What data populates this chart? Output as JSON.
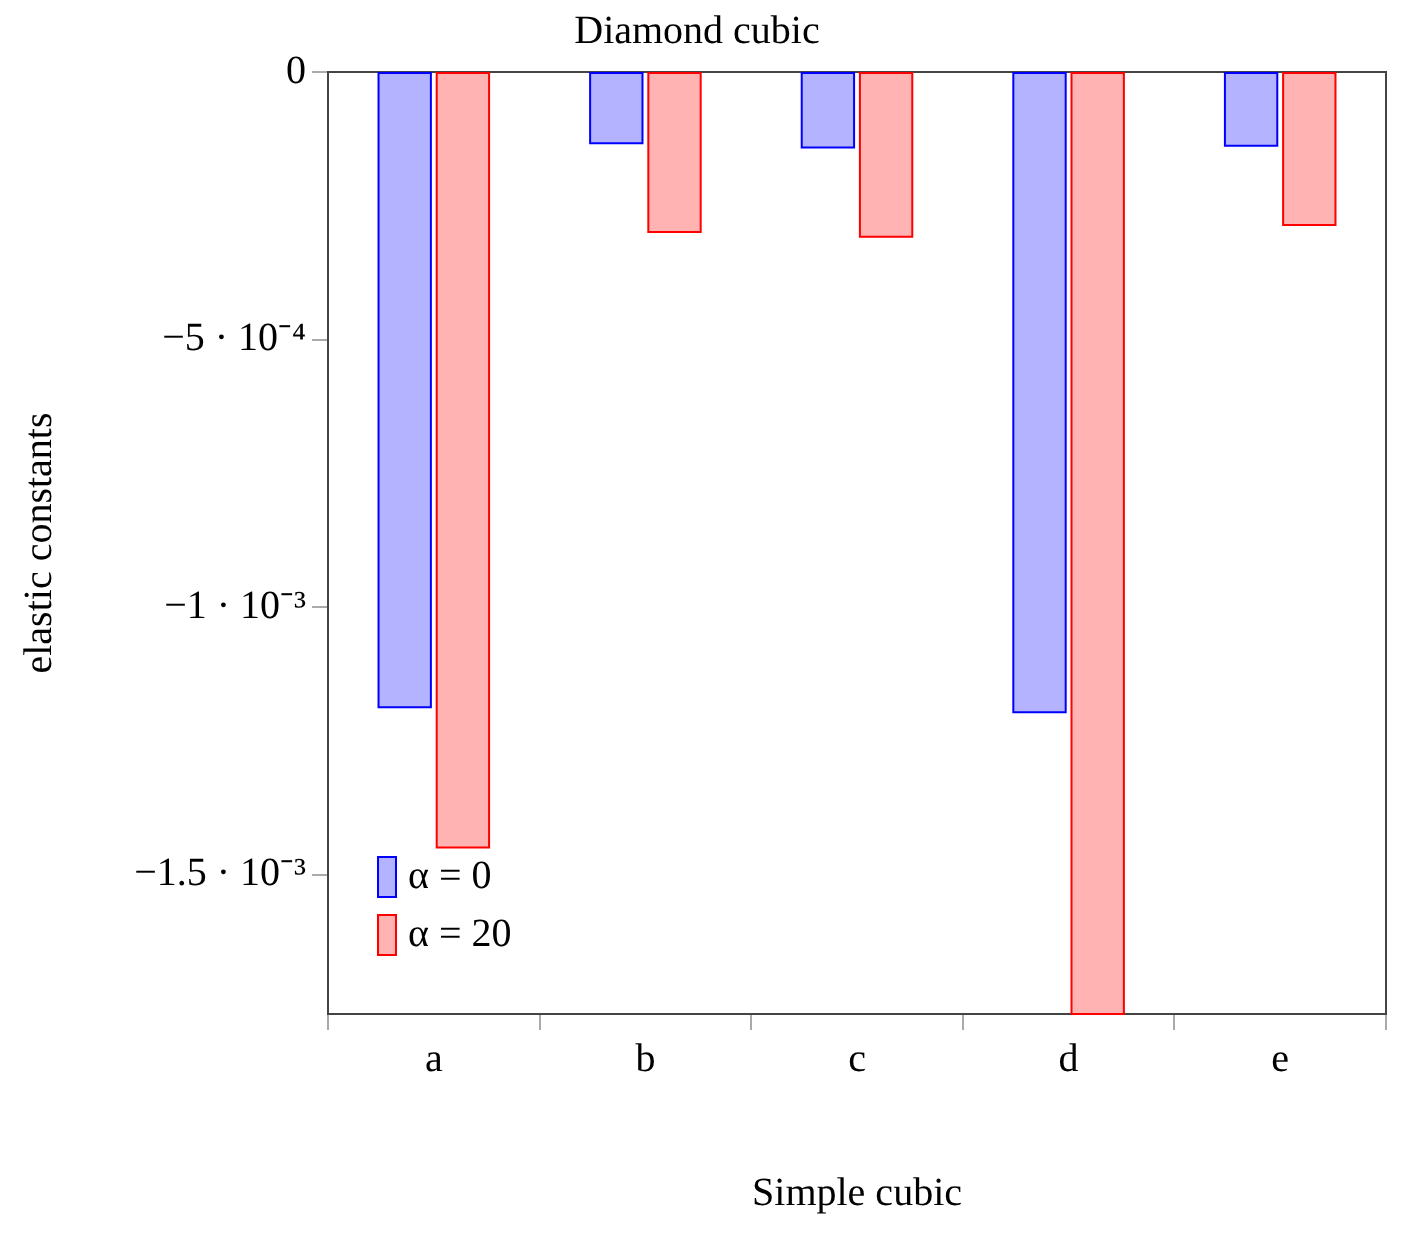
{
  "chart_data": {
    "type": "bar",
    "title": "Diamond cubic",
    "xlabel": "Simple cubic",
    "ylabel": "elastic constants",
    "categories": [
      "a",
      "b",
      "c",
      "d",
      "e"
    ],
    "series": [
      {
        "name": "α = 0",
        "color": "#0000ff",
        "values": [
          -0.001187,
          -0.000133,
          -0.000141,
          -0.001196,
          -0.000138
        ]
      },
      {
        "name": "α = 20",
        "color": "#ff0000",
        "values": [
          -0.001449,
          -0.000299,
          -0.000308,
          -0.00176,
          -0.000286
        ]
      }
    ],
    "ylim": [
      -0.00176,
      0
    ],
    "yticks": [
      0,
      {
        "value": -0.0005,
        "label": "−5 · 10⁻⁴"
      },
      {
        "value": -0.001,
        "label": "−1 · 10⁻³"
      },
      {
        "value": -0.0015,
        "label": "−1.5 · 10⁻³"
      }
    ],
    "legend": "bottom left",
    "grid": false
  }
}
